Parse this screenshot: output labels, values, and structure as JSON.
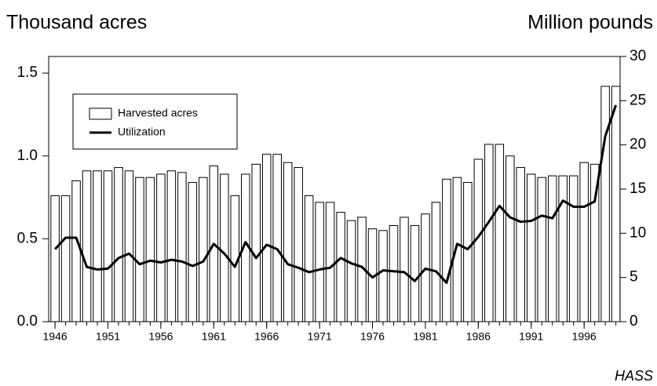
{
  "chart_data": {
    "type": "bar",
    "y_label": "Thousand acres",
    "y2_label": "Million pounds",
    "source": "HASS",
    "x": [
      1946,
      1947,
      1948,
      1949,
      1950,
      1951,
      1952,
      1953,
      1954,
      1955,
      1956,
      1957,
      1958,
      1959,
      1960,
      1961,
      1962,
      1963,
      1964,
      1965,
      1966,
      1967,
      1968,
      1969,
      1970,
      1971,
      1972,
      1973,
      1974,
      1975,
      1976,
      1977,
      1978,
      1979,
      1980,
      1981,
      1982,
      1983,
      1984,
      1985,
      1986,
      1987,
      1988,
      1989,
      1990,
      1991,
      1992,
      1993,
      1994,
      1995,
      1996,
      1997,
      1998,
      1999
    ],
    "series": [
      {
        "name": "Harvested acres",
        "type": "bar",
        "color": "#ffffff",
        "values": [
          0.76,
          0.76,
          0.85,
          0.91,
          0.91,
          0.91,
          0.93,
          0.91,
          0.87,
          0.87,
          0.89,
          0.91,
          0.9,
          0.84,
          0.87,
          0.94,
          0.89,
          0.76,
          0.89,
          0.95,
          1.01,
          1.01,
          0.96,
          0.93,
          0.76,
          0.72,
          0.72,
          0.66,
          0.61,
          0.63,
          0.56,
          0.55,
          0.58,
          0.63,
          0.58,
          0.65,
          0.72,
          0.86,
          0.87,
          0.84,
          0.98,
          1.07,
          1.07,
          1.0,
          0.93,
          0.89,
          0.87,
          0.88,
          0.88,
          0.88,
          0.96,
          0.95,
          1.42,
          1.42
        ]
      },
      {
        "name": "Utilization",
        "type": "line",
        "color": "#000000",
        "axis": "y2",
        "values": [
          8.2,
          9.5,
          9.5,
          6.2,
          5.9,
          6.0,
          7.2,
          7.7,
          6.5,
          6.9,
          6.7,
          7.0,
          6.8,
          6.3,
          6.8,
          8.8,
          7.7,
          6.2,
          9.0,
          7.2,
          8.7,
          8.2,
          6.5,
          6.1,
          5.6,
          5.9,
          6.1,
          7.2,
          6.6,
          6.2,
          5.0,
          5.8,
          5.7,
          5.6,
          4.6,
          6.0,
          5.7,
          4.4,
          8.8,
          8.2,
          9.6,
          11.3,
          13.1,
          11.8,
          11.3,
          11.4,
          12.0,
          11.7,
          13.7,
          13.0,
          13.0,
          13.6,
          21.0,
          24.5
        ]
      }
    ],
    "xlim": [
      1945.4,
      1999.4
    ],
    "xticks": [
      1946,
      1951,
      1956,
      1961,
      1966,
      1971,
      1976,
      1981,
      1986,
      1991,
      1996
    ],
    "ylim": [
      0,
      1.6
    ],
    "yticks": [
      {
        "value": 0,
        "label": "0.0"
      },
      {
        "value": 0.5,
        "label": "0.5"
      },
      {
        "value": 1,
        "label": "1.0"
      },
      1.5
    ],
    "y2lim": [
      0,
      30
    ],
    "y2ticks": [
      0,
      5,
      10,
      15,
      20,
      25,
      30
    ],
    "legend": "upper left"
  }
}
